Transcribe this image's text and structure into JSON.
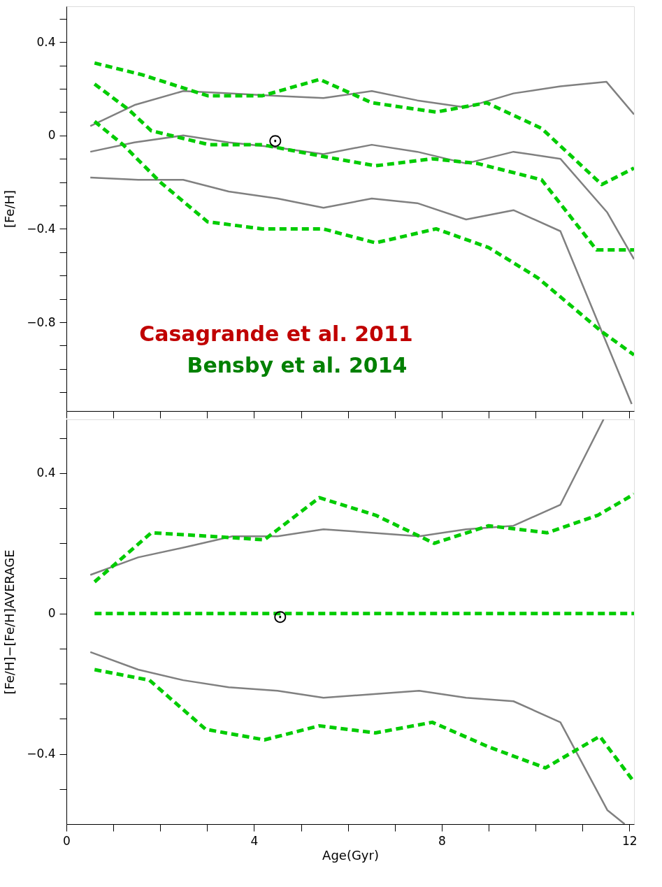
{
  "chart_data": [
    {
      "type": "line",
      "ylabel": "[Fe/H]",
      "xlim": [
        0,
        12.1
      ],
      "ylim": [
        -1.18,
        0.553
      ],
      "tick_labels": "y",
      "grid": false,
      "legend": false,
      "marker": "none",
      "xticks": [
        0,
        {
          "value": 1,
          "label": null
        },
        {
          "value": 2,
          "label": null
        },
        {
          "value": 3,
          "label": null
        },
        4,
        {
          "value": 5,
          "label": null
        },
        {
          "value": 6,
          "label": null
        },
        {
          "value": 7,
          "label": null
        },
        8,
        {
          "value": 9,
          "label": null
        },
        {
          "value": 10,
          "label": null
        },
        {
          "value": 11,
          "label": null
        },
        12
      ],
      "yticks": [
        {
          "value": -1.1,
          "label": null
        },
        {
          "value": -1.0,
          "label": null
        },
        {
          "value": -0.9,
          "label": null
        },
        -0.8,
        {
          "value": -0.7,
          "label": null
        },
        {
          "value": -0.6,
          "label": null
        },
        {
          "value": -0.5,
          "label": null
        },
        -0.4,
        {
          "value": -0.3,
          "label": null
        },
        {
          "value": -0.2,
          "label": null
        },
        {
          "value": -0.1,
          "label": null
        },
        0,
        {
          "value": 0.1,
          "label": null
        },
        {
          "value": 0.2,
          "label": null
        },
        {
          "value": 0.3,
          "label": null
        },
        0.4,
        {
          "value": 0.5,
          "label": null
        }
      ],
      "annotations": [
        "Casagrande et al. 2011",
        "Bensby et al. 2014",
        "⊙"
      ],
      "series": [
        {
          "color": "#808080",
          "line_style": "solid",
          "x": [
            0.51,
            1.45,
            2.49,
            3.46,
            4.42,
            5.48,
            6.51,
            7.48,
            8.52,
            9.53,
            10.53,
            11.51,
            12.1
          ],
          "values": [
            0.04,
            0.13,
            0.19,
            0.18,
            0.17,
            0.16,
            0.19,
            0.15,
            0.12,
            0.18,
            0.21,
            0.23,
            0.09
          ]
        },
        {
          "color": "#808080",
          "line_style": "solid",
          "x": [
            0.51,
            1.45,
            2.49,
            3.46,
            4.42,
            5.48,
            6.51,
            7.48,
            8.52,
            9.53,
            10.53,
            11.53,
            12.1
          ],
          "values": [
            -0.07,
            -0.03,
            0.0,
            -0.03,
            -0.05,
            -0.08,
            -0.04,
            -0.07,
            -0.12,
            -0.07,
            -0.1,
            -0.33,
            -0.53
          ]
        },
        {
          "color": "#808080",
          "line_style": "solid",
          "x": [
            0.51,
            1.53,
            2.49,
            3.46,
            4.5,
            5.48,
            6.51,
            7.48,
            8.52,
            9.53,
            10.53,
            12.05
          ],
          "values": [
            -0.18,
            -0.19,
            -0.19,
            -0.24,
            -0.27,
            -0.31,
            -0.27,
            -0.29,
            -0.36,
            -0.32,
            -0.41,
            -1.15
          ]
        },
        {
          "color": "#00cc00",
          "line_style": "dashed",
          "x": [
            0.6,
            1.61,
            3.01,
            4.18,
            5.4,
            6.51,
            7.88,
            8.96,
            10.13,
            11.41,
            12.1
          ],
          "values": [
            0.31,
            0.26,
            0.17,
            0.17,
            0.24,
            0.14,
            0.1,
            0.14,
            0.03,
            -0.21,
            -0.14
          ]
        },
        {
          "color": "#00cc00",
          "line_style": "dashed",
          "x": [
            0.6,
            1.33,
            1.81,
            3.05,
            4.18,
            5.47,
            6.59,
            7.8,
            8.76,
            10.13,
            11.3,
            12.1
          ],
          "values": [
            0.22,
            0.11,
            0.02,
            -0.04,
            -0.04,
            -0.09,
            -0.13,
            -0.1,
            -0.12,
            -0.19,
            -0.49,
            -0.49
          ]
        },
        {
          "color": "#00cc00",
          "line_style": "dashed",
          "x": [
            0.6,
            1.21,
            2.0,
            3.01,
            4.18,
            5.47,
            6.59,
            7.88,
            9.0,
            10.05,
            11.41,
            12.1
          ],
          "values": [
            0.06,
            -0.04,
            -0.2,
            -0.37,
            -0.4,
            -0.4,
            -0.46,
            -0.4,
            -0.48,
            -0.61,
            -0.84,
            -0.94
          ]
        }
      ]
    },
    {
      "type": "line",
      "xlabel": "Age(Gyr)",
      "ylabel": "[Fe/H]−[Fe/H]AVERAGE",
      "xlim": [
        0,
        12.1
      ],
      "ylim": [
        -0.6,
        0.553
      ],
      "grid": false,
      "legend": false,
      "marker": "none",
      "xticks": [
        0,
        {
          "value": 1,
          "label": null
        },
        {
          "value": 2,
          "label": null
        },
        {
          "value": 3,
          "label": null
        },
        4,
        {
          "value": 5,
          "label": null
        },
        {
          "value": 6,
          "label": null
        },
        {
          "value": 7,
          "label": null
        },
        8,
        {
          "value": 9,
          "label": null
        },
        {
          "value": 10,
          "label": null
        },
        {
          "value": 11,
          "label": null
        },
        12
      ],
      "yticks": [
        {
          "value": -0.5,
          "label": null
        },
        -0.4,
        {
          "value": -0.3,
          "label": null
        },
        {
          "value": -0.2,
          "label": null
        },
        {
          "value": -0.1,
          "label": null
        },
        0,
        {
          "value": 0.1,
          "label": null
        },
        {
          "value": 0.2,
          "label": null
        },
        {
          "value": 0.3,
          "label": null
        },
        0.4,
        {
          "value": 0.5,
          "label": null
        }
      ],
      "annotations": [
        "⊙"
      ],
      "series": [
        {
          "color": "#808080",
          "line_style": "solid",
          "x": [
            0.51,
            1.53,
            2.57,
            3.54,
            4.5,
            5.48,
            6.51,
            7.52,
            8.52,
            9.53,
            10.53,
            11.45
          ],
          "values": [
            0.11,
            0.16,
            0.19,
            0.22,
            0.22,
            0.24,
            0.23,
            0.22,
            0.24,
            0.25,
            0.31,
            0.553
          ]
        },
        {
          "color": "#00cc00",
          "line_style": "dashed",
          "x": [
            0.6,
            1.81,
            3.05,
            4.22,
            5.39,
            6.59,
            7.84,
            9.0,
            10.25,
            11.33,
            12.1
          ],
          "values": [
            0.09,
            0.23,
            0.22,
            0.21,
            0.33,
            0.28,
            0.2,
            0.25,
            0.23,
            0.28,
            0.34
          ]
        },
        {
          "color": "#00cc00",
          "line_style": "dashed",
          "x": [
            0.6,
            12.1
          ],
          "values": [
            0,
            0
          ]
        },
        {
          "color": "#808080",
          "line_style": "solid",
          "x": [
            0.51,
            1.53,
            2.49,
            3.46,
            4.5,
            5.48,
            6.51,
            7.52,
            8.52,
            9.53,
            10.53,
            11.53,
            11.9
          ],
          "values": [
            -0.11,
            -0.16,
            -0.19,
            -0.21,
            -0.22,
            -0.24,
            -0.23,
            -0.22,
            -0.24,
            -0.25,
            -0.31,
            -0.56,
            -0.6
          ]
        },
        {
          "color": "#00cc00",
          "line_style": "dashed",
          "x": [
            0.6,
            1.77,
            2.97,
            4.22,
            5.39,
            6.59,
            7.8,
            9.0,
            10.21,
            11.37,
            12.1
          ],
          "values": [
            -0.16,
            -0.19,
            -0.33,
            -0.36,
            -0.32,
            -0.34,
            -0.31,
            -0.38,
            -0.44,
            -0.35,
            -0.48
          ]
        }
      ]
    }
  ]
}
